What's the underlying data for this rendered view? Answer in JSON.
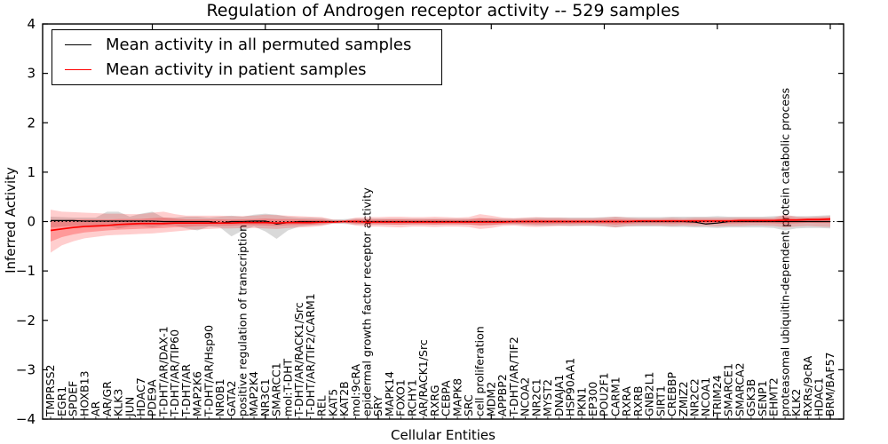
{
  "figure": {
    "title": "Regulation of Androgen receptor activity -- 529 samples",
    "xlabel": "Cellular Entities",
    "ylabel": "Inferred Activity"
  },
  "legend": {
    "items": [
      {
        "label": "Mean activity in all permuted samples",
        "color": "#000000"
      },
      {
        "label": "Mean activity in patient samples",
        "color": "#ff0000"
      }
    ]
  },
  "chart_data": {
    "type": "line",
    "title": "Regulation of Androgen receptor activity -- 529 samples",
    "xlabel": "Cellular Entities",
    "ylabel": "Inferred Activity",
    "ylim": [
      -4,
      4
    ],
    "ytick_labels": [
      "4",
      "3",
      "2",
      "1",
      "0",
      "−1",
      "−2",
      "−3",
      "−4"
    ],
    "ytick_values": [
      4,
      3,
      2,
      1,
      0,
      -1,
      -2,
      -3,
      -4
    ],
    "grid": false,
    "legend_position": "upper left",
    "zero_line": {
      "y": 0,
      "style": "dotted",
      "color": "#000000"
    },
    "categories": [
      "TMPRSS2",
      "EGR1",
      "SPDEF",
      "HOXB13",
      "AR",
      "AR/GR",
      "KLK3",
      "JUN",
      "HDAC7",
      "PDE9A",
      "T-DHT/AR/DAX-1",
      "T-DHT/AR/TIP60",
      "T-DHT/AR",
      "MAP2K6",
      "T-DHT/AR/Hsp90",
      "NR0B1",
      "GATA2",
      "positive regulation of transcription",
      "MAP2K4",
      "NR3C1",
      "SMARCC1",
      "mol:T-DHT",
      "T-DHT/AR/RACK1/Src",
      "T-DHT/AR/TIF2/CARM1",
      "REL",
      "KAT5",
      "KAT2B",
      "mol:9cRA",
      "epidermal growth factor receptor activity",
      "SRY",
      "MAPK14",
      "FOXO1",
      "RCHY1",
      "AR/RACK1/Src",
      "RXRG",
      "CEBPA",
      "MAPK8",
      "SRC",
      "cell proliferation",
      "MDM2",
      "APPBP2",
      "T-DHT/AR/TIF2",
      "NCOA2",
      "NR2C1",
      "MYST2",
      "DNAJA1",
      "HSP90AA1",
      "PKN1",
      "EP300",
      "POU2F1",
      "CARM1",
      "RXRA",
      "RXRB",
      "GNB2L1",
      "SIRT1",
      "CREBBP",
      "ZMIZ2",
      "NR2C2",
      "NCOA1",
      "TRIM24",
      "SMARCE1",
      "SMARCA2",
      "GSK3B",
      "SENP1",
      "EHMT2",
      "proteasomal ubiquitin-dependent protein catabolic process",
      "KLK2",
      "RXRs/9cRA",
      "HDAC1",
      "BRM/BAF57"
    ],
    "series": [
      {
        "name": "Mean activity in all permuted samples",
        "color": "#000000",
        "values": [
          0.02,
          0.02,
          0.02,
          0.01,
          0.01,
          0.01,
          0.01,
          0.01,
          0.01,
          0.01,
          0,
          0,
          0,
          0,
          0,
          -0.03,
          0,
          0,
          0.01,
          0.01,
          -0.05,
          -0.02,
          0,
          0,
          0,
          0,
          0,
          0,
          0,
          0,
          0,
          0,
          0,
          0,
          0,
          0,
          0,
          0,
          0,
          0,
          0,
          0,
          0,
          0,
          0,
          0,
          0,
          0,
          0,
          0,
          0,
          0,
          0,
          0,
          0,
          0,
          0,
          -0.01,
          -0.05,
          -0.03,
          0,
          0,
          0,
          0,
          0,
          0,
          0,
          0,
          0,
          0
        ]
      },
      {
        "name": "Mean activity in patient samples",
        "color": "#ff0000",
        "values": [
          -0.18,
          -0.15,
          -0.12,
          -0.1,
          -0.09,
          -0.08,
          -0.06,
          -0.05,
          -0.04,
          -0.04,
          -0.04,
          -0.03,
          -0.03,
          -0.03,
          -0.03,
          -0.03,
          -0.03,
          -0.02,
          -0.02,
          -0.02,
          -0.03,
          -0.02,
          -0.02,
          -0.02,
          -0.01,
          -0.01,
          0,
          0,
          -0.01,
          -0.01,
          -0.01,
          -0.01,
          -0.01,
          -0.01,
          -0.01,
          -0.01,
          -0.01,
          -0.01,
          -0.01,
          -0.01,
          -0.01,
          0,
          0,
          0,
          0,
          0,
          0,
          0,
          0,
          0,
          0,
          0,
          0.01,
          0.01,
          0.01,
          0.01,
          0.01,
          0.01,
          0.01,
          0.01,
          0.01,
          0.02,
          0.02,
          0.02,
          0.02,
          0.03,
          0.03,
          0.04,
          0.04,
          0.05
        ]
      }
    ],
    "bands": [
      {
        "name": "permuted-range",
        "color": "rgba(0,0,0,0.15)",
        "low": [
          -0.12,
          -0.1,
          -0.09,
          -0.09,
          -0.08,
          -0.08,
          -0.14,
          -0.1,
          -0.09,
          -0.12,
          -0.08,
          -0.08,
          -0.14,
          -0.18,
          -0.1,
          -0.12,
          -0.3,
          -0.18,
          -0.1,
          -0.2,
          -0.35,
          -0.18,
          -0.1,
          -0.08,
          -0.07,
          -0.04,
          -0.05,
          -0.06,
          -0.06,
          -0.06,
          -0.06,
          -0.06,
          -0.06,
          -0.06,
          -0.06,
          -0.06,
          -0.06,
          -0.06,
          -0.07,
          -0.07,
          -0.06,
          -0.06,
          -0.07,
          -0.08,
          -0.08,
          -0.08,
          -0.09,
          -0.09,
          -0.09,
          -0.1,
          -0.12,
          -0.1,
          -0.1,
          -0.1,
          -0.1,
          -0.11,
          -0.11,
          -0.12,
          -0.12,
          -0.13,
          -0.12,
          -0.12,
          -0.12,
          -0.12,
          -0.13,
          -0.18,
          -0.14,
          -0.13,
          -0.13,
          -0.14
        ],
        "high": [
          0.1,
          0.09,
          0.08,
          0.08,
          0.08,
          0.2,
          0.2,
          0.1,
          0.16,
          0.2,
          0.08,
          0.08,
          0.1,
          0.1,
          0.08,
          0.1,
          0.12,
          0.1,
          0.14,
          0.16,
          0.14,
          0.1,
          0.08,
          0.08,
          0.07,
          0.04,
          0.05,
          0.06,
          0.06,
          0.06,
          0.06,
          0.06,
          0.06,
          0.06,
          0.06,
          0.06,
          0.06,
          0.06,
          0.07,
          0.07,
          0.06,
          0.06,
          0.07,
          0.08,
          0.08,
          0.08,
          0.08,
          0.08,
          0.08,
          0.09,
          0.1,
          0.09,
          0.09,
          0.09,
          0.09,
          0.1,
          0.1,
          0.1,
          0.1,
          0.11,
          0.1,
          0.1,
          0.1,
          0.1,
          0.11,
          0.12,
          0.11,
          0.11,
          0.12,
          0.13
        ]
      },
      {
        "name": "patient-range",
        "color": "rgba(255,30,30,0.22)",
        "inner_color": "rgba(255,30,30,0.30)",
        "low": [
          -0.63,
          -0.48,
          -0.4,
          -0.34,
          -0.31,
          -0.28,
          -0.27,
          -0.26,
          -0.25,
          -0.24,
          -0.22,
          -0.2,
          -0.18,
          -0.16,
          -0.15,
          -0.14,
          -0.14,
          -0.13,
          -0.13,
          -0.14,
          -0.15,
          -0.13,
          -0.12,
          -0.11,
          -0.09,
          -0.04,
          -0.03,
          -0.08,
          -0.1,
          -0.1,
          -0.11,
          -0.12,
          -0.1,
          -0.1,
          -0.11,
          -0.1,
          -0.1,
          -0.11,
          -0.15,
          -0.13,
          -0.09,
          -0.08,
          -0.1,
          -0.11,
          -0.1,
          -0.09,
          -0.09,
          -0.08,
          -0.08,
          -0.09,
          -0.12,
          -0.09,
          -0.08,
          -0.08,
          -0.08,
          -0.09,
          -0.08,
          -0.09,
          -0.09,
          -0.1,
          -0.09,
          -0.09,
          -0.08,
          -0.08,
          -0.09,
          -0.12,
          -0.1,
          -0.09,
          -0.1,
          -0.11
        ],
        "high": [
          0.24,
          0.2,
          0.19,
          0.18,
          0.17,
          0.16,
          0.16,
          0.15,
          0.15,
          0.18,
          0.2,
          0.15,
          0.12,
          0.12,
          0.12,
          0.12,
          0.11,
          0.11,
          0.12,
          0.14,
          0.13,
          0.12,
          0.11,
          0.1,
          0.09,
          0.04,
          0.03,
          0.08,
          0.09,
          0.09,
          0.1,
          0.1,
          0.09,
          0.09,
          0.1,
          0.09,
          0.08,
          0.09,
          0.15,
          0.12,
          0.08,
          0.07,
          0.08,
          0.09,
          0.08,
          0.08,
          0.07,
          0.07,
          0.07,
          0.08,
          0.1,
          0.08,
          0.07,
          0.07,
          0.07,
          0.08,
          0.07,
          0.08,
          0.08,
          0.08,
          0.08,
          0.08,
          0.08,
          0.08,
          0.08,
          0.14,
          0.1,
          0.09,
          0.1,
          0.11
        ]
      }
    ]
  }
}
